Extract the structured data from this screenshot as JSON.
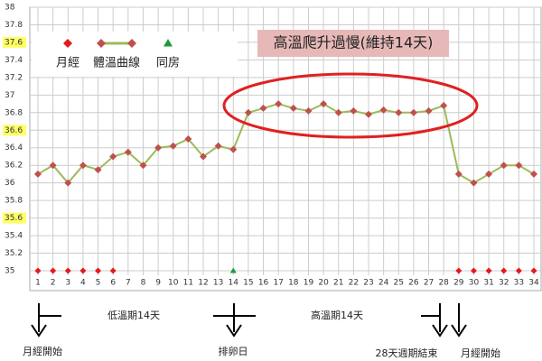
{
  "chart_data": {
    "type": "line",
    "annotation": "高溫爬升過慢(維持14天)",
    "categories": [
      "1",
      "2",
      "3",
      "4",
      "5",
      "6",
      "7",
      "8",
      "9",
      "10",
      "11",
      "12",
      "13",
      "14",
      "15",
      "16",
      "17",
      "18",
      "19",
      "20",
      "21",
      "22",
      "23",
      "24",
      "25",
      "26",
      "27",
      "28",
      "29",
      "30",
      "31",
      "32",
      "33",
      "34"
    ],
    "series": [
      {
        "name": "月經",
        "color": "#e31a1c",
        "marker": "diamond",
        "line": false,
        "values": [
          35,
          35,
          35,
          35,
          35,
          35,
          null,
          null,
          null,
          null,
          null,
          null,
          null,
          null,
          null,
          null,
          null,
          null,
          null,
          null,
          null,
          null,
          null,
          null,
          null,
          null,
          null,
          null,
          35,
          35,
          35,
          35,
          35,
          35
        ]
      },
      {
        "name": "體溫曲線",
        "color": "#9bbb59",
        "marker_color": "#c0504d",
        "marker": "diamond",
        "line": true,
        "values": [
          36.1,
          36.2,
          36.0,
          36.2,
          36.15,
          36.3,
          36.35,
          36.2,
          36.4,
          36.42,
          36.5,
          36.3,
          36.42,
          36.38,
          36.8,
          36.85,
          36.9,
          36.85,
          36.82,
          36.9,
          36.8,
          36.82,
          36.78,
          36.83,
          36.8,
          36.8,
          36.82,
          36.88,
          36.1,
          36.0,
          36.1,
          36.2,
          36.2,
          36.1
        ]
      },
      {
        "name": "同房",
        "color": "#1f9a3a",
        "marker": "triangle",
        "line": false,
        "values": [
          null,
          null,
          null,
          null,
          null,
          null,
          null,
          null,
          null,
          null,
          null,
          null,
          null,
          35,
          null,
          null,
          null,
          null,
          null,
          null,
          null,
          null,
          null,
          null,
          null,
          null,
          null,
          null,
          null,
          null,
          null,
          null,
          null,
          null
        ]
      }
    ],
    "ylim": [
      35,
      38
    ],
    "yticks": [
      35,
      35.2,
      35.4,
      35.6,
      35.8,
      36,
      36.2,
      36.4,
      36.6,
      36.8,
      37,
      37.2,
      37.4,
      37.6,
      37.8,
      38
    ],
    "yticks_highlight": [
      35.6,
      36.6,
      37.6
    ],
    "grid": true,
    "footer_labels": [
      "月經開始",
      "低溫期14天",
      "排卵日",
      "高溫期14天",
      "28天週期結束",
      "月經開始"
    ]
  }
}
